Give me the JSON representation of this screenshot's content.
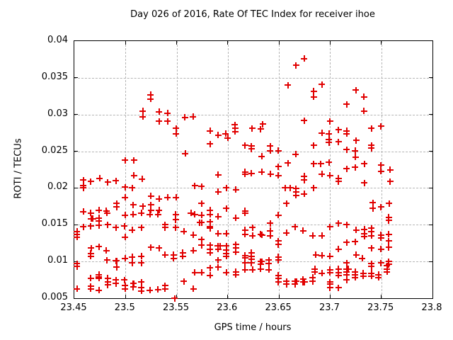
{
  "title": "Day 026 of 2016, Rate Of TEC Index for receiver ihoe",
  "chart_data": {
    "type": "scatter",
    "title": "Day 026 of 2016, Rate Of TEC Index for receiver ihoe",
    "xlabel": "GPS time / hours",
    "ylabel": "ROTI / TECUs",
    "xlim": [
      23.45,
      23.8
    ],
    "ylim": [
      0.005,
      0.04
    ],
    "xticks": [
      23.45,
      23.5,
      23.55,
      23.6,
      23.65,
      23.7,
      23.75,
      23.8
    ],
    "xtick_labels": [
      "23.45",
      "23.5",
      "23.55",
      "23.6",
      "23.65",
      "23.7",
      "23.75",
      "23.8"
    ],
    "yticks": [
      0.005,
      0.01,
      0.015,
      0.02,
      0.025,
      0.03,
      0.035,
      0.04
    ],
    "ytick_labels": [
      "0.005",
      "0.01",
      "0.015",
      "0.02",
      "0.025",
      "0.03",
      "0.035",
      "0.04"
    ],
    "grid": true,
    "legend": "none",
    "marker": "plus",
    "marker_color": "#e10000",
    "grid_color": "#b5b5b5",
    "series_name": "ROTI",
    "points": [
      [
        23.5247,
        0.0327
      ],
      [
        23.5247,
        0.0321
      ],
      [
        23.5169,
        0.0305
      ],
      [
        23.5169,
        0.0297
      ],
      [
        23.533,
        0.0304
      ],
      [
        23.533,
        0.0291
      ],
      [
        23.541,
        0.0302
      ],
      [
        23.541,
        0.0291
      ],
      [
        23.558,
        0.0296
      ],
      [
        23.566,
        0.0297
      ],
      [
        23.6748,
        0.0376
      ],
      [
        23.6667,
        0.0367
      ],
      [
        23.6587,
        0.034
      ],
      [
        23.684,
        0.0332
      ],
      [
        23.684,
        0.0324
      ],
      [
        23.6748,
        0.0292
      ],
      [
        23.6068,
        0.0286
      ],
      [
        23.634,
        0.0287
      ],
      [
        23.692,
        0.0341
      ],
      [
        23.725,
        0.0333
      ],
      [
        23.733,
        0.0324
      ],
      [
        23.716,
        0.0314
      ],
      [
        23.733,
        0.0305
      ],
      [
        23.7,
        0.0291
      ],
      [
        23.7497,
        0.0284
      ],
      [
        23.5496,
        0.0281
      ],
      [
        23.5496,
        0.0274
      ],
      [
        23.5584,
        0.0247
      ],
      [
        23.4996,
        0.0238
      ],
      [
        23.5084,
        0.0238
      ],
      [
        23.5084,
        0.0217
      ],
      [
        23.5162,
        0.0212
      ],
      [
        23.4587,
        0.0211
      ],
      [
        23.4587,
        0.0203
      ],
      [
        23.4587,
        0.02
      ],
      [
        23.4662,
        0.0209
      ],
      [
        23.4747,
        0.0213
      ],
      [
        23.4826,
        0.0208
      ],
      [
        23.4906,
        0.021
      ],
      [
        23.4996,
        0.0201
      ],
      [
        23.5065,
        0.02
      ],
      [
        23.5676,
        0.0203
      ],
      [
        23.4996,
        0.0187
      ],
      [
        23.525,
        0.0189
      ],
      [
        23.533,
        0.0185
      ],
      [
        23.541,
        0.0187
      ],
      [
        23.5496,
        0.0187
      ],
      [
        23.4915,
        0.0179
      ],
      [
        23.4915,
        0.0174
      ],
      [
        23.5077,
        0.0177
      ],
      [
        23.5169,
        0.0175
      ],
      [
        23.525,
        0.0177
      ],
      [
        23.525,
        0.017
      ],
      [
        23.533,
        0.017
      ],
      [
        23.5826,
        0.0278
      ],
      [
        23.5906,
        0.0272
      ],
      [
        23.5978,
        0.0274
      ],
      [
        23.5999,
        0.0268
      ],
      [
        23.6073,
        0.0281
      ],
      [
        23.6073,
        0.0277
      ],
      [
        23.6237,
        0.0281
      ],
      [
        23.6322,
        0.028
      ],
      [
        23.5826,
        0.026
      ],
      [
        23.6168,
        0.0258
      ],
      [
        23.623,
        0.0257
      ],
      [
        23.623,
        0.0253
      ],
      [
        23.6414,
        0.0257
      ],
      [
        23.6414,
        0.0251
      ],
      [
        23.6495,
        0.0251
      ],
      [
        23.6333,
        0.0243
      ],
      [
        23.6663,
        0.0246
      ],
      [
        23.684,
        0.0258
      ],
      [
        23.6495,
        0.0229
      ],
      [
        23.6587,
        0.0234
      ],
      [
        23.684,
        0.0233
      ],
      [
        23.691,
        0.0233
      ],
      [
        23.5906,
        0.0218
      ],
      [
        23.6168,
        0.0222
      ],
      [
        23.6168,
        0.0219
      ],
      [
        23.623,
        0.022
      ],
      [
        23.6333,
        0.0222
      ],
      [
        23.6418,
        0.0219
      ],
      [
        23.6495,
        0.0217
      ],
      [
        23.6748,
        0.0216
      ],
      [
        23.6748,
        0.0211
      ],
      [
        23.5745,
        0.0202
      ],
      [
        23.5987,
        0.02
      ],
      [
        23.608,
        0.0198
      ],
      [
        23.5906,
        0.0195
      ],
      [
        23.656,
        0.02
      ],
      [
        23.661,
        0.02
      ],
      [
        23.6667,
        0.0199
      ],
      [
        23.6667,
        0.0195
      ],
      [
        23.6667,
        0.019
      ],
      [
        23.6748,
        0.0192
      ],
      [
        23.684,
        0.02
      ],
      [
        23.5745,
        0.0179
      ],
      [
        23.5826,
        0.017
      ],
      [
        23.5987,
        0.0172
      ],
      [
        23.6575,
        0.0179
      ],
      [
        23.6168,
        0.0169
      ],
      [
        23.692,
        0.0275
      ],
      [
        23.699,
        0.0274
      ],
      [
        23.7082,
        0.0279
      ],
      [
        23.7163,
        0.0278
      ],
      [
        23.7163,
        0.0274
      ],
      [
        23.7405,
        0.0281
      ],
      [
        23.699,
        0.0266
      ],
      [
        23.699,
        0.0262
      ],
      [
        23.7082,
        0.0263
      ],
      [
        23.7255,
        0.0265
      ],
      [
        23.7163,
        0.0252
      ],
      [
        23.7244,
        0.0251
      ],
      [
        23.7249,
        0.0242
      ],
      [
        23.7405,
        0.0258
      ],
      [
        23.7405,
        0.0254
      ],
      [
        23.699,
        0.0235
      ],
      [
        23.7163,
        0.0226
      ],
      [
        23.7244,
        0.0228
      ],
      [
        23.7497,
        0.0231
      ],
      [
        23.7497,
        0.0223
      ],
      [
        23.7585,
        0.0225
      ],
      [
        23.7335,
        0.0233
      ],
      [
        23.692,
        0.0219
      ],
      [
        23.7,
        0.0217
      ],
      [
        23.7082,
        0.0213
      ],
      [
        23.7082,
        0.0209
      ],
      [
        23.7335,
        0.0207
      ],
      [
        23.7585,
        0.0209
      ],
      [
        23.7417,
        0.018
      ],
      [
        23.7417,
        0.0172
      ],
      [
        23.7497,
        0.0174
      ],
      [
        23.7578,
        0.0179
      ],
      [
        23.4587,
        0.0168
      ],
      [
        23.4662,
        0.0166
      ],
      [
        23.4742,
        0.017
      ],
      [
        23.4814,
        0.0169
      ],
      [
        23.482,
        0.0166
      ],
      [
        23.4996,
        0.0163
      ],
      [
        23.5076,
        0.0164
      ],
      [
        23.5157,
        0.0166
      ],
      [
        23.5238,
        0.0164
      ],
      [
        23.5318,
        0.0164
      ],
      [
        23.5491,
        0.0164
      ],
      [
        23.5641,
        0.0166
      ],
      [
        23.5676,
        0.0164
      ],
      [
        23.4666,
        0.0158
      ],
      [
        23.468,
        0.0158
      ],
      [
        23.4742,
        0.0159
      ],
      [
        23.4742,
        0.0155
      ],
      [
        23.4587,
        0.0147
      ],
      [
        23.4662,
        0.0148
      ],
      [
        23.4742,
        0.0149
      ],
      [
        23.4826,
        0.015
      ],
      [
        23.4906,
        0.0146
      ],
      [
        23.499,
        0.0148
      ],
      [
        23.5065,
        0.0143
      ],
      [
        23.5157,
        0.0146
      ],
      [
        23.5388,
        0.015
      ],
      [
        23.5388,
        0.0146
      ],
      [
        23.5491,
        0.0157
      ],
      [
        23.5491,
        0.0146
      ],
      [
        23.5572,
        0.0141
      ],
      [
        23.5664,
        0.0136
      ],
      [
        23.4527,
        0.0141
      ],
      [
        23.4527,
        0.0137
      ],
      [
        23.4527,
        0.0133
      ],
      [
        23.4996,
        0.0133
      ],
      [
        23.4666,
        0.0118
      ],
      [
        23.4742,
        0.012
      ],
      [
        23.4814,
        0.0115
      ],
      [
        23.525,
        0.0119
      ],
      [
        23.533,
        0.0118
      ],
      [
        23.5664,
        0.0115
      ],
      [
        23.4662,
        0.0111
      ],
      [
        23.4662,
        0.0107
      ],
      [
        23.4527,
        0.0097
      ],
      [
        23.4527,
        0.0093
      ],
      [
        23.482,
        0.0102
      ],
      [
        23.4905,
        0.0101
      ],
      [
        23.4915,
        0.0101
      ],
      [
        23.4996,
        0.0104
      ],
      [
        23.5065,
        0.0106
      ],
      [
        23.5065,
        0.0098
      ],
      [
        23.5157,
        0.0107
      ],
      [
        23.5157,
        0.0098
      ],
      [
        23.5388,
        0.0109
      ],
      [
        23.5469,
        0.0109
      ],
      [
        23.5469,
        0.0104
      ],
      [
        23.556,
        0.0112
      ],
      [
        23.556,
        0.0107
      ],
      [
        23.4915,
        0.0092
      ],
      [
        23.4662,
        0.0077
      ],
      [
        23.4742,
        0.0082
      ],
      [
        23.4742,
        0.0079
      ],
      [
        23.4742,
        0.0077
      ],
      [
        23.4826,
        0.0077
      ],
      [
        23.4826,
        0.0072
      ],
      [
        23.4826,
        0.0068
      ],
      [
        23.4906,
        0.0075
      ],
      [
        23.4906,
        0.007
      ],
      [
        23.499,
        0.0075
      ],
      [
        23.4996,
        0.0067
      ],
      [
        23.4996,
        0.0063
      ],
      [
        23.5076,
        0.007
      ],
      [
        23.508,
        0.007
      ],
      [
        23.5076,
        0.0065
      ],
      [
        23.5157,
        0.0072
      ],
      [
        23.5157,
        0.0064
      ],
      [
        23.5157,
        0.006
      ],
      [
        23.5238,
        0.0061
      ],
      [
        23.5318,
        0.0062
      ],
      [
        23.5388,
        0.0067
      ],
      [
        23.5388,
        0.0063
      ],
      [
        23.4527,
        0.0063
      ],
      [
        23.4662,
        0.0066
      ],
      [
        23.4662,
        0.0063
      ],
      [
        23.4742,
        0.0061
      ],
      [
        23.5572,
        0.0073
      ],
      [
        23.5664,
        0.0063
      ],
      [
        23.548,
        0.005
      ],
      [
        23.5745,
        0.0163
      ],
      [
        23.5826,
        0.0164
      ],
      [
        23.5906,
        0.0161
      ],
      [
        23.5826,
        0.0154
      ],
      [
        23.5826,
        0.0147
      ],
      [
        23.5826,
        0.0145
      ],
      [
        23.5726,
        0.0153
      ],
      [
        23.5742,
        0.0153
      ],
      [
        23.608,
        0.0159
      ],
      [
        23.6168,
        0.0166
      ],
      [
        23.6495,
        0.0163
      ],
      [
        23.6414,
        0.0152
      ],
      [
        23.6168,
        0.0143
      ],
      [
        23.6168,
        0.0137
      ],
      [
        23.6243,
        0.0146
      ],
      [
        23.6243,
        0.0135
      ],
      [
        23.6322,
        0.0137
      ],
      [
        23.6335,
        0.0136
      ],
      [
        23.6414,
        0.0142
      ],
      [
        23.6414,
        0.0135
      ],
      [
        23.6495,
        0.0128
      ],
      [
        23.6495,
        0.0123
      ],
      [
        23.6575,
        0.0139
      ],
      [
        23.6656,
        0.0147
      ],
      [
        23.6736,
        0.0142
      ],
      [
        23.6828,
        0.0135
      ],
      [
        23.5906,
        0.0138
      ],
      [
        23.5987,
        0.0138
      ],
      [
        23.5745,
        0.013
      ],
      [
        23.5745,
        0.0122
      ],
      [
        23.5826,
        0.0122
      ],
      [
        23.5826,
        0.0117
      ],
      [
        23.5826,
        0.0112
      ],
      [
        23.5902,
        0.0121
      ],
      [
        23.5922,
        0.0121
      ],
      [
        23.5906,
        0.0117
      ],
      [
        23.5987,
        0.0121
      ],
      [
        23.5987,
        0.0116
      ],
      [
        23.5987,
        0.0111
      ],
      [
        23.5987,
        0.0107
      ],
      [
        23.608,
        0.0123
      ],
      [
        23.608,
        0.0118
      ],
      [
        23.608,
        0.0113
      ],
      [
        23.5906,
        0.0102
      ],
      [
        23.6168,
        0.0108
      ],
      [
        23.6168,
        0.0105
      ],
      [
        23.623,
        0.0112
      ],
      [
        23.623,
        0.0107
      ],
      [
        23.623,
        0.0103
      ],
      [
        23.623,
        0.0098
      ],
      [
        23.6168,
        0.0098
      ],
      [
        23.6322,
        0.01
      ],
      [
        23.6333,
        0.01
      ],
      [
        23.6322,
        0.0096
      ],
      [
        23.6401,
        0.0102
      ],
      [
        23.6401,
        0.0097
      ],
      [
        23.6495,
        0.0106
      ],
      [
        23.6495,
        0.0102
      ],
      [
        23.6168,
        0.0089
      ],
      [
        23.6243,
        0.0089
      ],
      [
        23.6322,
        0.009
      ],
      [
        23.6401,
        0.0089
      ],
      [
        23.5826,
        0.0091
      ],
      [
        23.5906,
        0.0092
      ],
      [
        23.5676,
        0.0085
      ],
      [
        23.5745,
        0.0085
      ],
      [
        23.5826,
        0.0081
      ],
      [
        23.5987,
        0.0085
      ],
      [
        23.608,
        0.0086
      ],
      [
        23.608,
        0.0082
      ],
      [
        23.6495,
        0.0081
      ],
      [
        23.6495,
        0.0077
      ],
      [
        23.6495,
        0.0072
      ],
      [
        23.6575,
        0.0073
      ],
      [
        23.6575,
        0.0069
      ],
      [
        23.6656,
        0.0073
      ],
      [
        23.667,
        0.0073
      ],
      [
        23.6656,
        0.0069
      ],
      [
        23.6736,
        0.0076
      ],
      [
        23.6736,
        0.0072
      ],
      [
        23.675,
        0.0072
      ],
      [
        23.6828,
        0.0078
      ],
      [
        23.6828,
        0.0073
      ],
      [
        23.7,
        0.0147
      ],
      [
        23.7082,
        0.0152
      ],
      [
        23.7163,
        0.015
      ],
      [
        23.7573,
        0.016
      ],
      [
        23.7573,
        0.0156
      ],
      [
        23.7255,
        0.0143
      ],
      [
        23.7335,
        0.0144
      ],
      [
        23.7335,
        0.0138
      ],
      [
        23.7335,
        0.0134
      ],
      [
        23.7405,
        0.0145
      ],
      [
        23.7405,
        0.0141
      ],
      [
        23.7405,
        0.0135
      ],
      [
        23.7497,
        0.0136
      ],
      [
        23.7497,
        0.0132
      ],
      [
        23.7573,
        0.0137
      ],
      [
        23.7573,
        0.0128
      ],
      [
        23.7573,
        0.0119
      ],
      [
        23.7163,
        0.0126
      ],
      [
        23.7244,
        0.0127
      ],
      [
        23.692,
        0.0135
      ],
      [
        23.7082,
        0.0117
      ],
      [
        23.7405,
        0.0118
      ],
      [
        23.7497,
        0.0117
      ],
      [
        23.7255,
        0.0109
      ],
      [
        23.686,
        0.0109
      ],
      [
        23.692,
        0.0108
      ],
      [
        23.7,
        0.0107
      ],
      [
        23.7163,
        0.0098
      ],
      [
        23.7312,
        0.0104
      ],
      [
        23.7405,
        0.0097
      ],
      [
        23.7405,
        0.0093
      ],
      [
        23.7497,
        0.0098
      ],
      [
        23.7573,
        0.01
      ],
      [
        23.7573,
        0.0096
      ],
      [
        23.685,
        0.009
      ],
      [
        23.685,
        0.0086
      ],
      [
        23.692,
        0.0084
      ],
      [
        23.7,
        0.0089
      ],
      [
        23.7,
        0.0085
      ],
      [
        23.7082,
        0.009
      ],
      [
        23.7082,
        0.0085
      ],
      [
        23.7082,
        0.0081
      ],
      [
        23.7163,
        0.009
      ],
      [
        23.7177,
        0.009
      ],
      [
        23.7163,
        0.0086
      ],
      [
        23.7163,
        0.0082
      ],
      [
        23.7163,
        0.0075
      ],
      [
        23.7244,
        0.0086
      ],
      [
        23.7244,
        0.0082
      ],
      [
        23.7244,
        0.0078
      ],
      [
        23.7324,
        0.0084
      ],
      [
        23.7324,
        0.008
      ],
      [
        23.7405,
        0.0084
      ],
      [
        23.7405,
        0.008
      ],
      [
        23.7474,
        0.0082
      ],
      [
        23.7474,
        0.0078
      ],
      [
        23.7554,
        0.0094
      ],
      [
        23.7554,
        0.009
      ],
      [
        23.7554,
        0.0086
      ],
      [
        23.7,
        0.0072
      ],
      [
        23.7,
        0.0069
      ],
      [
        23.7,
        0.0064
      ],
      [
        23.7082,
        0.0064
      ]
    ]
  }
}
